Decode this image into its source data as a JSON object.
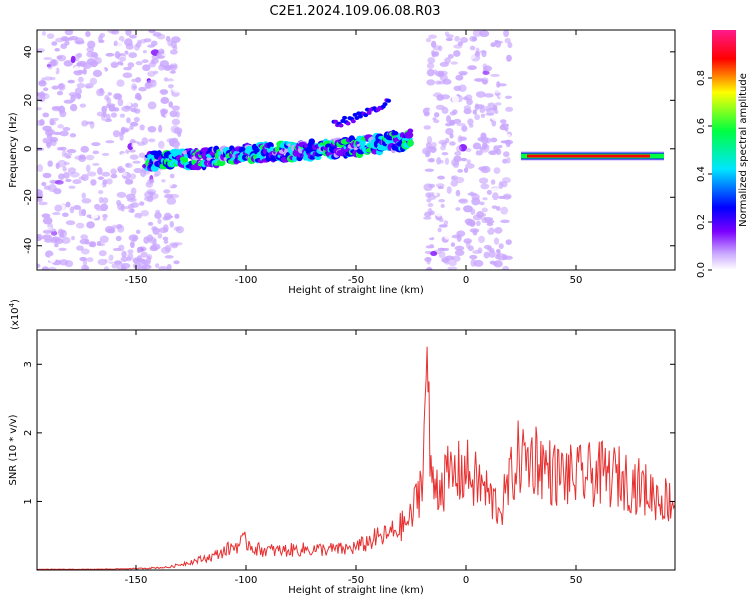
{
  "title": "C2E1.2024.109.06.08.R03",
  "chart_data": [
    {
      "type": "heatmap",
      "xlabel": "Height of straight line (km)",
      "ylabel": "Frequency (Hz)",
      "xlim": [
        -195,
        95
      ],
      "ylim": [
        -50,
        49
      ],
      "xticks": [
        -150,
        -100,
        -50,
        0,
        50
      ],
      "yticks": [
        -40,
        -20,
        0,
        20,
        40
      ],
      "colorbar": {
        "label": "Normalized spectral amplitude",
        "range": [
          0,
          1
        ],
        "ticks": [
          "0.0",
          "0.2",
          "0.4",
          "0.6",
          "0.8"
        ],
        "colors": [
          "#ffffff",
          "#c9a6ff",
          "#7b00ff",
          "#0000ff",
          "#00e6ff",
          "#00ff40",
          "#ffff00",
          "#ff0000",
          "#ff1a8c"
        ]
      },
      "features": {
        "noise_regions": [
          [
            -195,
            -130
          ],
          [
            -18,
            20
          ]
        ],
        "main_trace": {
          "x": [
            -145,
            -120,
            -100,
            -80,
            -60,
            -40,
            -25
          ],
          "y": [
            -5,
            -4,
            -2,
            -1,
            0,
            2,
            4
          ],
          "peak_amplitude": 0.5
        },
        "upper_branch": {
          "x": [
            -60,
            -50,
            -40,
            -35
          ],
          "y": [
            10,
            13,
            17,
            19
          ]
        },
        "line_trace": {
          "x": [
            25,
            90
          ],
          "y": [
            -3,
            -3
          ],
          "peak_amplitude": 0.9
        }
      }
    },
    {
      "type": "line",
      "xlabel": "Height of straight line (km)",
      "ylabel": "SNR (10 * v/v)",
      "y_multiplier": "(x10^4)",
      "xlim": [
        -195,
        95
      ],
      "ylim": [
        0,
        3.5
      ],
      "xticks": [
        -150,
        -100,
        -50,
        0,
        50
      ],
      "yticks": [
        1,
        2,
        3
      ],
      "series": [
        {
          "color": "#e83030",
          "x": [
            -195,
            -170,
            -150,
            -135,
            -125,
            -115,
            -105,
            -100,
            -95,
            -85,
            -75,
            -65,
            -55,
            -48,
            -42,
            -36,
            -30,
            -25,
            -21,
            -19,
            -18,
            -16,
            -12,
            -8,
            -4,
            0,
            4,
            8,
            12,
            16,
            20,
            24,
            28,
            32,
            36,
            40,
            50,
            60,
            70,
            80,
            88,
            95
          ],
          "y": [
            0.01,
            0.01,
            0.02,
            0.04,
            0.12,
            0.2,
            0.35,
            0.42,
            0.3,
            0.28,
            0.3,
            0.3,
            0.3,
            0.35,
            0.45,
            0.5,
            0.62,
            0.75,
            1.2,
            1.8,
            3.4,
            1.3,
            1.25,
            1.35,
            1.4,
            1.45,
            1.3,
            1.2,
            1.0,
            0.9,
            1.3,
            1.65,
            1.6,
            1.65,
            1.5,
            1.4,
            1.35,
            1.4,
            1.35,
            1.2,
            1.05,
            1.0
          ]
        }
      ]
    }
  ]
}
